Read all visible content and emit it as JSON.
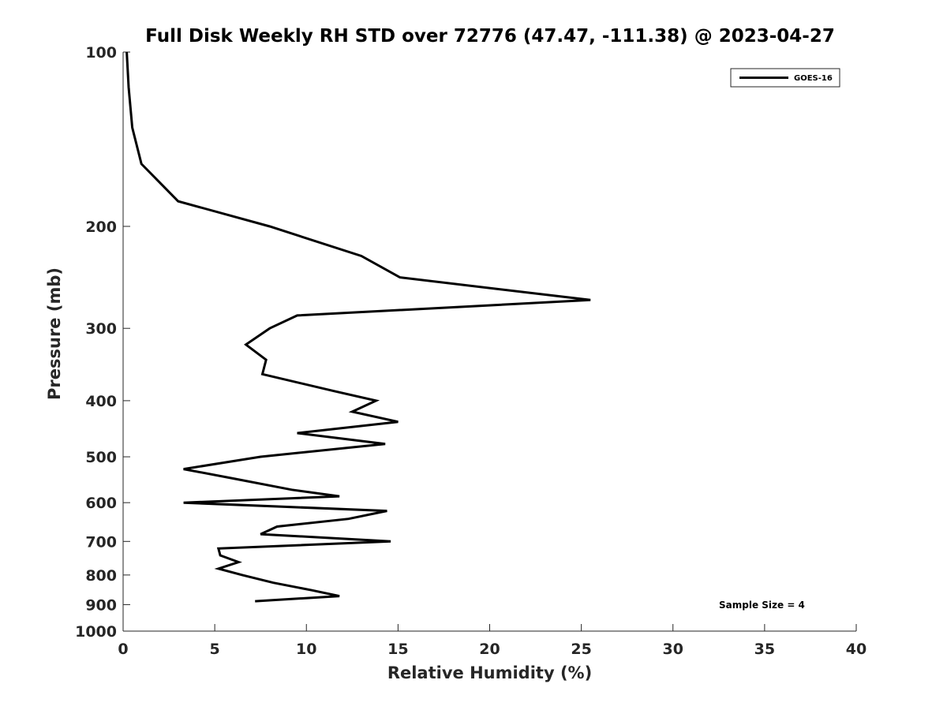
{
  "chart_data": {
    "type": "line",
    "title": "Full Disk Weekly RH STD over 72776 (47.47, -111.38) @ 2023-04-27",
    "xlabel": "Relative Humidity (%)",
    "ylabel": "Pressure (mb)",
    "xlim": [
      0,
      40
    ],
    "ylim": [
      100,
      1000
    ],
    "y_scale": "log",
    "y_reversed": true,
    "x_ticks": [
      0,
      5,
      10,
      15,
      20,
      25,
      30,
      35,
      40
    ],
    "y_ticks": [
      100,
      200,
      300,
      400,
      500,
      600,
      700,
      800,
      900,
      1000
    ],
    "grid": false,
    "legend_position": "top-right",
    "series": [
      {
        "name": "GOES-16",
        "color": "#000000",
        "points": [
          {
            "rh": 0.2,
            "p": 100
          },
          {
            "rh": 0.3,
            "p": 115
          },
          {
            "rh": 0.5,
            "p": 135
          },
          {
            "rh": 1.0,
            "p": 156
          },
          {
            "rh": 3.0,
            "p": 181
          },
          {
            "rh": 8.0,
            "p": 200
          },
          {
            "rh": 13.0,
            "p": 225
          },
          {
            "rh": 15.1,
            "p": 245
          },
          {
            "rh": 25.5,
            "p": 268
          },
          {
            "rh": 9.5,
            "p": 285
          },
          {
            "rh": 8.0,
            "p": 300
          },
          {
            "rh": 6.7,
            "p": 320
          },
          {
            "rh": 7.8,
            "p": 340
          },
          {
            "rh": 7.6,
            "p": 360
          },
          {
            "rh": 11.5,
            "p": 385
          },
          {
            "rh": 13.8,
            "p": 400
          },
          {
            "rh": 12.5,
            "p": 418
          },
          {
            "rh": 15.0,
            "p": 435
          },
          {
            "rh": 9.5,
            "p": 455
          },
          {
            "rh": 14.3,
            "p": 475
          },
          {
            "rh": 7.5,
            "p": 500
          },
          {
            "rh": 3.3,
            "p": 525
          },
          {
            "rh": 6.0,
            "p": 545
          },
          {
            "rh": 9.2,
            "p": 570
          },
          {
            "rh": 11.8,
            "p": 585
          },
          {
            "rh": 3.3,
            "p": 600
          },
          {
            "rh": 14.4,
            "p": 620
          },
          {
            "rh": 12.3,
            "p": 640
          },
          {
            "rh": 8.4,
            "p": 660
          },
          {
            "rh": 7.5,
            "p": 680
          },
          {
            "rh": 14.6,
            "p": 700
          },
          {
            "rh": 5.2,
            "p": 720
          },
          {
            "rh": 5.3,
            "p": 740
          },
          {
            "rh": 6.3,
            "p": 760
          },
          {
            "rh": 5.2,
            "p": 780
          },
          {
            "rh": 6.5,
            "p": 800
          },
          {
            "rh": 8.2,
            "p": 825
          },
          {
            "rh": 10.3,
            "p": 850
          },
          {
            "rh": 11.8,
            "p": 870
          },
          {
            "rh": 7.2,
            "p": 888
          }
        ]
      }
    ],
    "annotations": [
      "Sample Size = 4"
    ]
  }
}
